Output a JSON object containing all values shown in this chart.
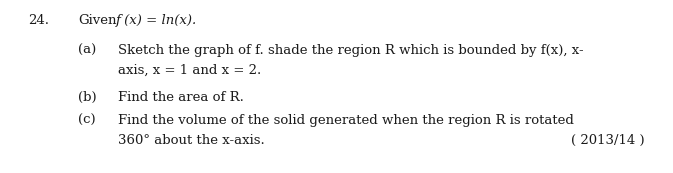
{
  "question_number": "24.",
  "given_label": "Given",
  "given_math": " f (x) = ln(x).",
  "parts": [
    {
      "label": "(a)",
      "text": "Sketch the graph of f. shade the region R which is bounded by f(x), x-",
      "text2": "axis, x = 1 and x = 2."
    },
    {
      "label": "(b)",
      "text": "Find the area of R."
    },
    {
      "label": "(c)",
      "text": "Find the volume of the solid generated when the region R is rotated",
      "text2": "360° about the x-axis.",
      "year": "( 2013/14 )"
    }
  ],
  "bg_color": "#ffffff",
  "text_color": "#1a1a1a",
  "font_size": 9.5
}
